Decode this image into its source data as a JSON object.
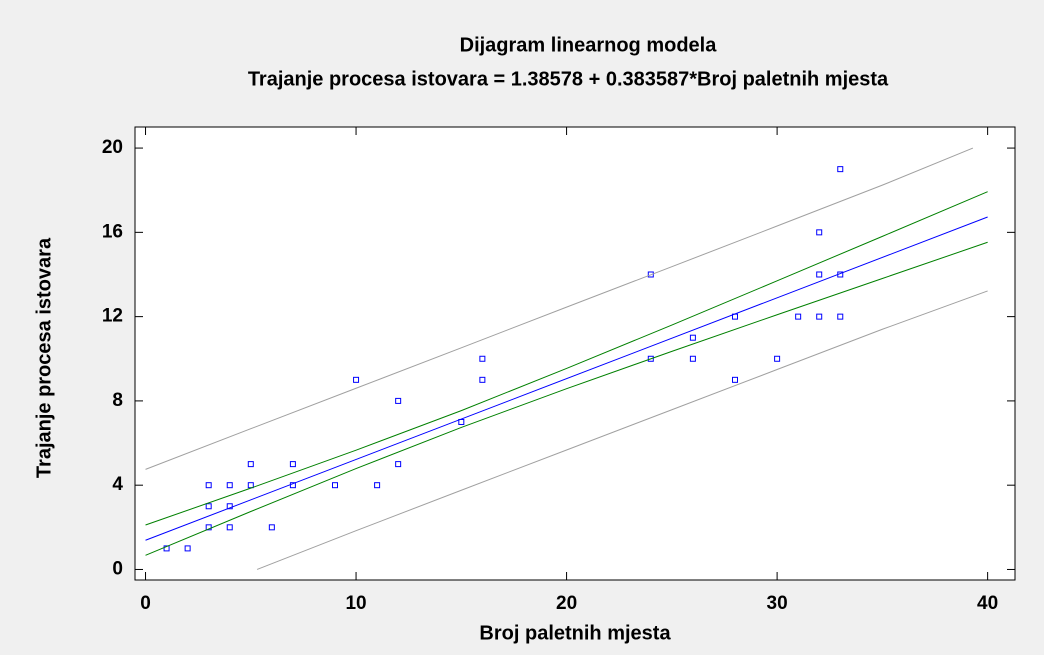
{
  "chart_data": {
    "type": "scatter",
    "title": "Dijagram linearnog modela",
    "subtitle": "Trajanje procesa istovara = 1.38578 + 0.383587*Broj paletnih mjesta",
    "x_label": "Broj paletnih mjesta",
    "y_label": "Trajanje procesa istovara",
    "xlim": [
      -0.5,
      41.3
    ],
    "ylim": [
      -0.5,
      21
    ],
    "xticks": [
      0,
      10,
      20,
      30,
      40
    ],
    "yticks": [
      0,
      4,
      8,
      12,
      16,
      20
    ],
    "series": [
      {
        "kind": "points",
        "color": "#0000ff",
        "x": [
          1,
          2,
          3,
          3,
          3,
          4,
          4,
          4,
          5,
          5,
          6,
          7,
          7,
          9,
          10,
          11,
          12,
          12,
          15,
          16,
          16,
          24,
          24,
          26,
          26,
          28,
          28,
          30,
          31,
          32,
          32,
          32,
          33,
          33,
          33
        ],
        "values": [
          1,
          1,
          2,
          3,
          4,
          2,
          3,
          4,
          4,
          5,
          2,
          4,
          5,
          4,
          9,
          4,
          5,
          8,
          7,
          9,
          10,
          10,
          14,
          10,
          11,
          9,
          12,
          10,
          12,
          12,
          14,
          16,
          12,
          14,
          19
        ]
      },
      {
        "kind": "line",
        "color": "#0000ff",
        "x": [
          0,
          40
        ],
        "values": [
          1.386,
          16.729
        ]
      },
      {
        "kind": "line",
        "color": "#008000",
        "x": [
          0,
          5,
          10,
          15,
          20,
          25,
          30,
          35,
          40
        ],
        "values": [
          2.11,
          3.86,
          5.66,
          7.54,
          9.54,
          11.6,
          13.7,
          15.81,
          17.93
        ]
      },
      {
        "kind": "line",
        "color": "#008000",
        "x": [
          0,
          5,
          10,
          15,
          20,
          25,
          30,
          35,
          40
        ],
        "values": [
          0.67,
          2.75,
          4.79,
          6.74,
          8.58,
          10.35,
          12.09,
          13.81,
          15.53
        ]
      },
      {
        "kind": "line",
        "color": "#a0a0a0",
        "x": [
          0,
          5,
          10,
          15,
          20,
          25,
          30,
          35,
          39.3
        ],
        "values": [
          4.75,
          6.68,
          8.6,
          10.52,
          12.45,
          14.37,
          16.3,
          18.24,
          20
        ]
      },
      {
        "kind": "line",
        "color": "#a0a0a0",
        "x": [
          5.3,
          10,
          15,
          20,
          25,
          30,
          35,
          40
        ],
        "values": [
          0,
          1.84,
          3.76,
          5.67,
          7.58,
          9.49,
          11.4,
          13.22
        ]
      }
    ]
  }
}
